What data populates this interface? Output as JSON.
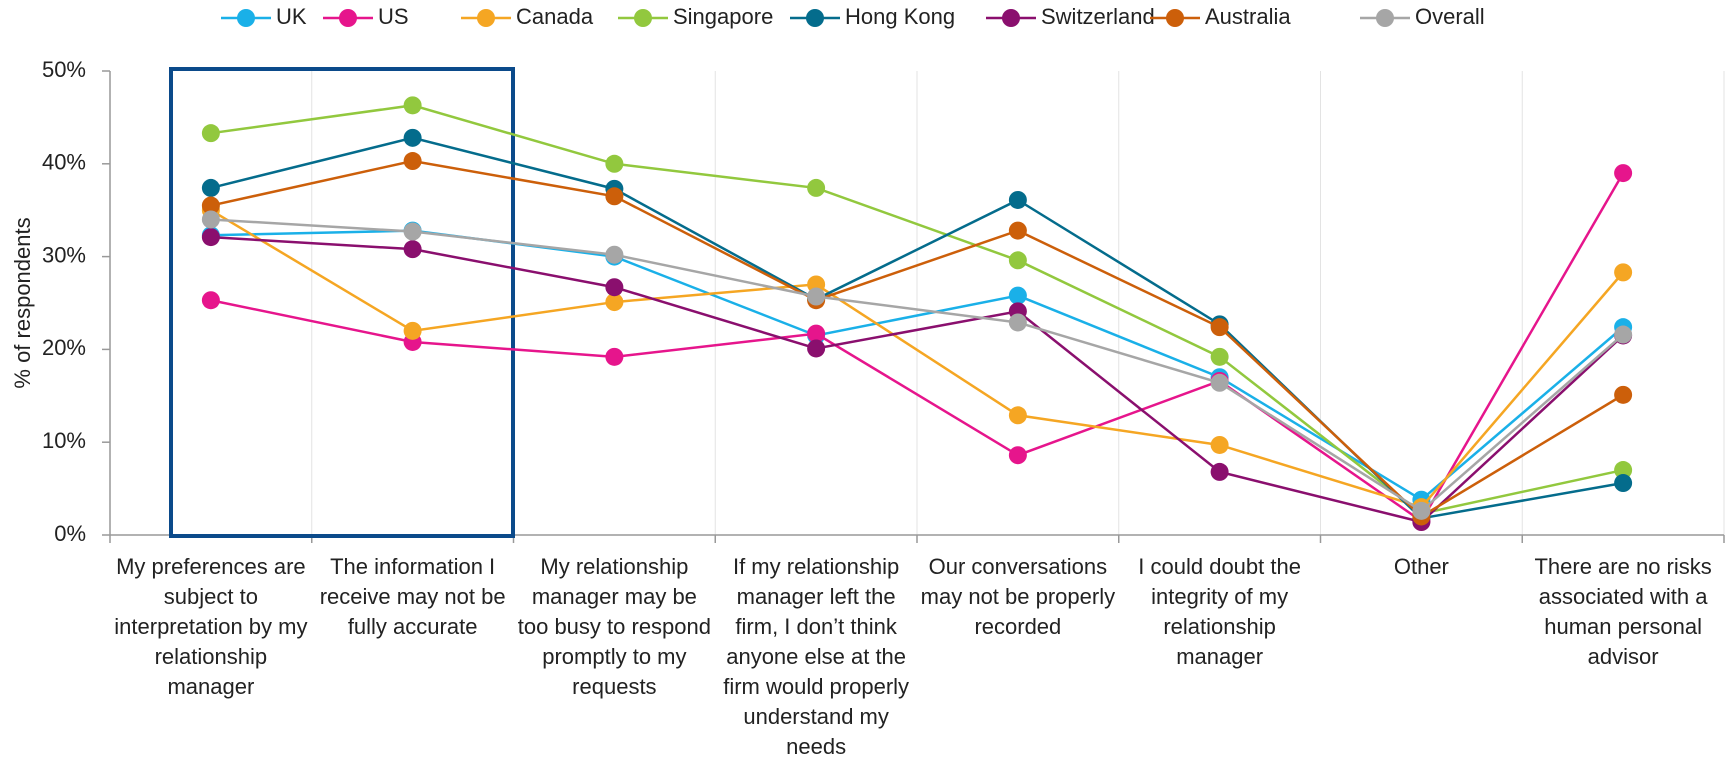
{
  "chart_data": {
    "type": "line",
    "y_label": "% of respondents",
    "categories": [
      "My preferences are subject to interpretation by my relationship manager",
      "The information I receive may not be fully accurate",
      "My relationship manager may be too busy to respond promptly to my requests",
      "If my relationship manager left the firm, I don’t think anyone else at the firm would properly understand my needs",
      "Our conversations may not be properly recorded",
      "I could doubt the integrity of my relationship manager",
      "Other",
      "There are no risks associated with a human personal advisor"
    ],
    "series": [
      {
        "name": "UK",
        "color": "#1ab0e8",
        "values": [
          32.3,
          32.8,
          30.0,
          21.5,
          25.8,
          17.0,
          3.8,
          22.4
        ]
      },
      {
        "name": "US",
        "color": "#e6158c",
        "values": [
          25.3,
          20.8,
          19.2,
          21.7,
          8.6,
          16.6,
          1.5,
          39.0
        ]
      },
      {
        "name": "Canada",
        "color": "#f5a623",
        "values": [
          35.0,
          22.0,
          25.1,
          27.0,
          12.9,
          9.7,
          3.0,
          28.3
        ]
      },
      {
        "name": "Singapore",
        "color": "#92c83e",
        "values": [
          43.3,
          46.3,
          40.0,
          37.4,
          29.6,
          19.2,
          2.3,
          7.0
        ]
      },
      {
        "name": "Hong Kong",
        "color": "#046c8c",
        "values": [
          37.4,
          42.8,
          37.3,
          25.4,
          36.1,
          22.7,
          1.8,
          5.6
        ]
      },
      {
        "name": "Switzerland",
        "color": "#8a0f6e",
        "values": [
          32.1,
          30.8,
          26.7,
          20.1,
          24.1,
          6.8,
          1.4,
          21.5
        ]
      },
      {
        "name": "Australia",
        "color": "#cc5f0a",
        "values": [
          35.5,
          40.3,
          36.5,
          25.3,
          32.8,
          22.4,
          2.0,
          15.1
        ]
      },
      {
        "name": "Overall",
        "color": "#a6a6a6",
        "values": [
          34.0,
          32.7,
          30.2,
          25.7,
          22.9,
          16.4,
          2.6,
          21.6
        ]
      }
    ],
    "ylim": [
      0,
      50
    ],
    "yticks": [
      {
        "value": 0,
        "label": "0%"
      },
      {
        "value": 10,
        "label": "10%"
      },
      {
        "value": 20,
        "label": "20%"
      },
      {
        "value": 30,
        "label": "30%"
      },
      {
        "value": 40,
        "label": "40%"
      },
      {
        "value": 50,
        "label": "50%"
      }
    ],
    "legend": "top"
  }
}
